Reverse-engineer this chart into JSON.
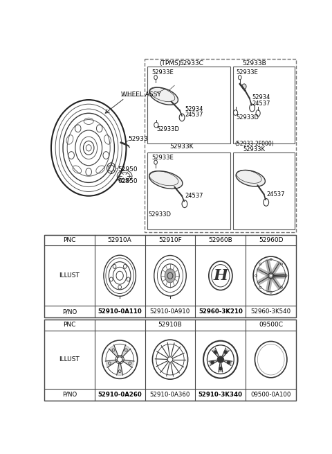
{
  "bg_color": "#ffffff",
  "lc": "#333333",
  "tlc": "#444444",
  "table1": {
    "pnc_row": [
      "PNC",
      "52910A",
      "52910F",
      "52960B",
      "52960D"
    ],
    "pno_row": [
      "P/NO",
      "52910-0A110",
      "52910-0A910",
      "52960-3K210",
      "52960-3K540"
    ],
    "bold_pno": [
      1,
      3
    ]
  },
  "table2": {
    "pnc_row_left": "52910B",
    "pnc_row_right": "09500C",
    "pno_row": [
      "P/NO",
      "52910-0A260",
      "52910-0A360",
      "52910-3K340",
      "09500-0A100"
    ],
    "bold_pno": [
      1,
      3
    ]
  }
}
